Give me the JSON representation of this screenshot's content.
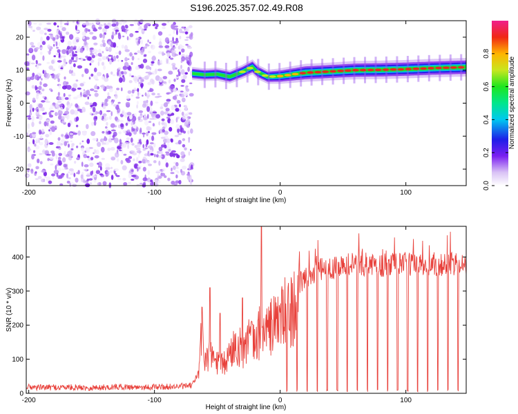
{
  "title": "S196.2025.357.02.49.R08",
  "chart_data": [
    {
      "type": "heatmap",
      "xlabel": "Height of straight line (km)",
      "ylabel": "Frequency (Hz)",
      "xlim": [
        -202,
        148
      ],
      "ylim": [
        -25,
        25
      ],
      "xticks": [
        -200,
        -100,
        0,
        100
      ],
      "xtick_labels": [
        "-200",
        "-100",
        "0",
        "100"
      ],
      "yticks": [
        20,
        10,
        0,
        -10,
        -20
      ],
      "ytick_labels": [
        "20",
        "10",
        "0",
        "-10",
        "-20"
      ],
      "noise_region": [
        -202,
        -70
      ],
      "ridge": {
        "x": [
          -70,
          -60,
          -50,
          -40,
          -30,
          -22,
          -18,
          -10,
          0,
          20,
          40,
          60,
          80,
          100,
          120,
          148
        ],
        "freq": [
          9.0,
          8.6,
          8.8,
          8.0,
          9.5,
          11.0,
          9.5,
          8.0,
          8.2,
          9.2,
          9.6,
          10.0,
          10.1,
          10.3,
          10.6,
          10.9
        ],
        "amplitude": [
          0.35,
          0.3,
          0.35,
          0.4,
          0.45,
          0.55,
          0.5,
          0.45,
          0.6,
          0.85,
          0.85,
          0.9,
          0.9,
          0.9,
          0.9,
          0.92
        ]
      },
      "colorbar": {
        "label": "Normalized spectral amplitude",
        "range": [
          0.0,
          1.0
        ],
        "ticks": [
          0.0,
          0.2,
          0.4,
          0.6,
          0.8
        ],
        "tick_labels": [
          "0.0",
          "0.2",
          "0.4",
          "0.6",
          "0.8"
        ]
      }
    },
    {
      "type": "line",
      "xlabel": "Height of straight line (km)",
      "ylabel": "SNR (10 * v/v)",
      "xlim": [
        -202,
        148
      ],
      "ylim": [
        0,
        490
      ],
      "xticks": [
        -200,
        -100,
        0,
        100
      ],
      "xtick_labels": [
        "-200",
        "-100",
        "0",
        "100"
      ],
      "yticks": [
        0,
        100,
        200,
        300,
        400
      ],
      "ytick_labels": [
        "0",
        "100",
        "200",
        "300",
        "400"
      ],
      "color": "#e8413b",
      "x": [
        -202,
        -190,
        -170,
        -150,
        -130,
        -110,
        -90,
        -75,
        -70,
        -65,
        -62,
        -60,
        -55,
        -50,
        -45,
        -40,
        -35,
        -30,
        -25,
        -20,
        -15,
        -10,
        -5,
        0,
        5,
        10,
        15,
        20,
        25,
        30,
        40,
        50,
        60,
        80,
        100,
        120,
        148
      ],
      "values": [
        18,
        16,
        17,
        15,
        18,
        17,
        18,
        20,
        22,
        60,
        250,
        120,
        130,
        110,
        100,
        140,
        180,
        150,
        200,
        170,
        240,
        220,
        250,
        270,
        290,
        300,
        320,
        340,
        350,
        360,
        370,
        375,
        380,
        375,
        380,
        378,
        380
      ],
      "peaks": [
        {
          "x": -56,
          "y": 310
        },
        {
          "x": -48,
          "y": 235
        },
        {
          "x": -30,
          "y": 280
        },
        {
          "x": -15,
          "y": 490
        }
      ],
      "dropouts_start": 5,
      "dropout_spacing": 8
    }
  ]
}
